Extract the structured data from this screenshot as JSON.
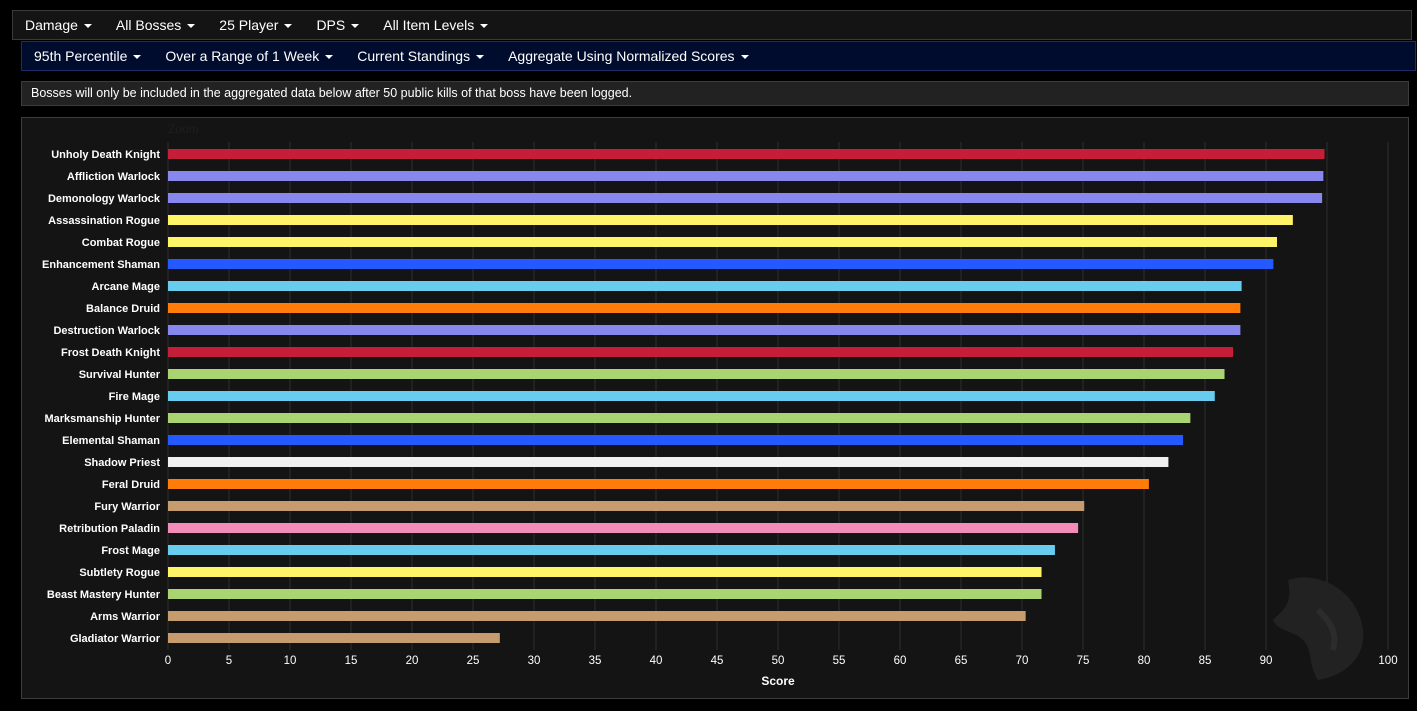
{
  "menu_primary": [
    {
      "label": "Damage"
    },
    {
      "label": "All Bosses"
    },
    {
      "label": "25 Player"
    },
    {
      "label": "DPS"
    },
    {
      "label": "All Item Levels"
    }
  ],
  "menu_secondary": [
    {
      "label": "95th Percentile"
    },
    {
      "label": "Over a Range of 1 Week"
    },
    {
      "label": "Current Standings"
    },
    {
      "label": "Aggregate Using Normalized Scores"
    }
  ],
  "notice": "Bosses will only be included in the aggregated data below after 50 public kills of that boss have been logged.",
  "chart_data": {
    "type": "bar",
    "orientation": "horizontal",
    "zoom_label": "Zoom",
    "xlabel": "Score",
    "ylabel": "",
    "xlim": [
      0,
      100
    ],
    "xticks": [
      0,
      5,
      10,
      15,
      20,
      25,
      30,
      35,
      40,
      45,
      50,
      55,
      60,
      65,
      70,
      75,
      80,
      85,
      90,
      95,
      100
    ],
    "grid": true,
    "legend": "none",
    "categories": [
      "Unholy Death Knight",
      "Affliction Warlock",
      "Demonology Warlock",
      "Assassination Rogue",
      "Combat Rogue",
      "Enhancement Shaman",
      "Arcane Mage",
      "Balance Druid",
      "Destruction Warlock",
      "Frost Death Knight",
      "Survival Hunter",
      "Fire Mage",
      "Marksmanship Hunter",
      "Elemental Shaman",
      "Shadow Priest",
      "Feral Druid",
      "Fury Warrior",
      "Retribution Paladin",
      "Frost Mage",
      "Subtlety Rogue",
      "Beast Mastery Hunter",
      "Arms Warrior",
      "Gladiator Warrior"
    ],
    "values": [
      94.8,
      94.7,
      94.6,
      92.2,
      90.9,
      90.6,
      88.0,
      87.9,
      87.9,
      87.3,
      86.6,
      85.8,
      83.8,
      83.2,
      82.0,
      80.4,
      75.1,
      74.6,
      72.7,
      71.6,
      71.6,
      70.3,
      27.2
    ],
    "colors": [
      "#c41e3a",
      "#8787ed",
      "#8787ed",
      "#fff468",
      "#fff468",
      "#2459ff",
      "#68ccef",
      "#ff7c0a",
      "#8787ed",
      "#c41e3a",
      "#aad372",
      "#68ccef",
      "#aad372",
      "#2459ff",
      "#f0f0f0",
      "#ff7c0a",
      "#c69b6d",
      "#f48cba",
      "#68ccef",
      "#fff468",
      "#aad372",
      "#c69b6d",
      "#c69b6d"
    ]
  }
}
